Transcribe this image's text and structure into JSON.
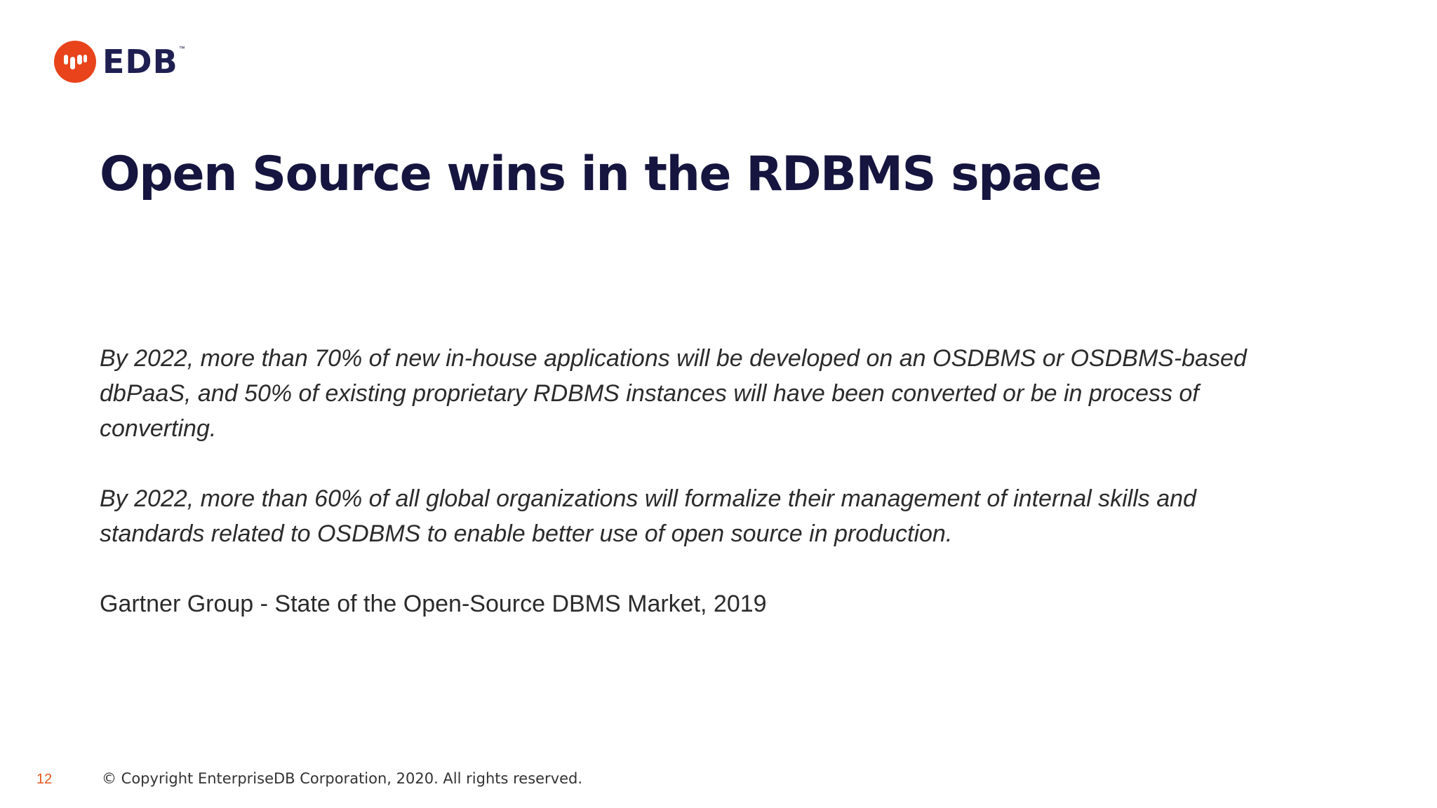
{
  "logo": {
    "text": "EDB",
    "trademark": "™",
    "mark_icon": "edb-elephant-icon",
    "brand_color": "#e8431b"
  },
  "slide": {
    "title": "Open Source wins in the RDBMS space",
    "quotes": [
      "By 2022, more than 70% of new in-house applications will be developed on an OSDBMS or OSDBMS-based dbPaaS, and 50% of existing proprietary RDBMS instances will have been converted or be in process of converting.",
      "By 2022, more than 60% of all global organizations will formalize their management of internal skills and standards related to OSDBMS to enable better use of open source in production."
    ],
    "source": "Gartner Group - State of the Open-Source DBMS Market, 2019"
  },
  "footer": {
    "page_number": "12",
    "copyright": "© Copyright EnterpriseDB Corporation, 2020. All rights reserved."
  },
  "colors": {
    "title": "#15153f",
    "body_text": "#2b2b2b",
    "page_number": "#e8561e"
  }
}
